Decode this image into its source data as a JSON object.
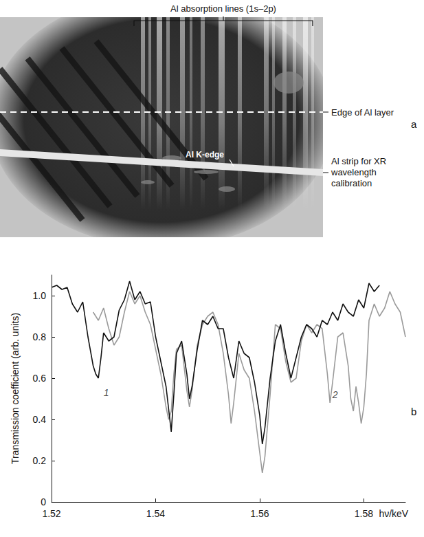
{
  "photo": {
    "letter": "a",
    "header": "Al absorption lines (1s–2p)",
    "edge_label": "Edge of Al layer",
    "kedge_label": "Al K-edge",
    "strip_label": "Al strip for XR wavelength calibration"
  },
  "chart_data": {
    "type": "line",
    "letter": "b",
    "x_label": "hν/keV",
    "y_label": "Transmission coefficient (arb. units)",
    "xlim": [
      1.52,
      1.588
    ],
    "xticks": [
      1.52,
      1.54,
      1.56,
      1.58
    ],
    "ylim": [
      0,
      1.1
    ],
    "yticks": [
      0,
      0.2,
      0.4,
      0.6,
      0.8,
      {
        "value": 1,
        "label": "1.0"
      }
    ],
    "grid": false,
    "series": [
      {
        "color": "#9a9a9a",
        "x": [
          1.528,
          1.529,
          1.53,
          1.531,
          1.532,
          1.533,
          1.534,
          1.535,
          1.536,
          1.537,
          1.538,
          1.539,
          1.54,
          1.541,
          1.542,
          1.5425,
          1.543,
          1.5435,
          1.544,
          1.545,
          1.546,
          1.5465,
          1.547,
          1.548,
          1.549,
          1.55,
          1.551,
          1.552,
          1.553,
          1.554,
          1.5545,
          1.555,
          1.556,
          1.557,
          1.558,
          1.559,
          1.56,
          1.5605,
          1.561,
          1.562,
          1.563,
          1.564,
          1.565,
          1.566,
          1.567,
          1.568,
          1.569,
          1.57,
          1.571,
          1.572,
          1.573,
          1.5735,
          1.574,
          1.575,
          1.576,
          1.577,
          1.5775,
          1.578,
          1.5785,
          1.579,
          1.5795,
          1.58,
          1.5805,
          1.581,
          1.582,
          1.583,
          1.584,
          1.585,
          1.586,
          1.587,
          1.588
        ],
        "values": [
          0.92,
          0.88,
          0.94,
          0.84,
          0.76,
          0.8,
          0.92,
          1.02,
          0.96,
          1.0,
          0.92,
          0.86,
          0.74,
          0.62,
          0.46,
          0.4,
          0.44,
          0.62,
          0.74,
          0.76,
          0.54,
          0.46,
          0.54,
          0.76,
          0.86,
          0.9,
          0.92,
          0.86,
          0.72,
          0.52,
          0.38,
          0.48,
          0.72,
          0.64,
          0.6,
          0.44,
          0.24,
          0.14,
          0.22,
          0.52,
          0.86,
          0.84,
          0.68,
          0.58,
          0.6,
          0.78,
          0.86,
          0.82,
          0.86,
          0.84,
          0.62,
          0.48,
          0.58,
          0.8,
          0.82,
          0.66,
          0.5,
          0.44,
          0.56,
          0.48,
          0.38,
          0.46,
          0.62,
          0.88,
          0.96,
          0.9,
          0.94,
          1.02,
          0.96,
          0.92,
          0.8
        ]
      },
      {
        "color": "#111111",
        "x": [
          1.52,
          1.521,
          1.522,
          1.523,
          1.524,
          1.525,
          1.526,
          1.527,
          1.528,
          1.5285,
          1.529,
          1.5295,
          1.53,
          1.531,
          1.532,
          1.533,
          1.534,
          1.535,
          1.536,
          1.537,
          1.538,
          1.539,
          1.54,
          1.541,
          1.542,
          1.5425,
          1.543,
          1.5435,
          1.544,
          1.545,
          1.546,
          1.5465,
          1.547,
          1.548,
          1.549,
          1.55,
          1.551,
          1.552,
          1.553,
          1.554,
          1.555,
          1.556,
          1.557,
          1.558,
          1.559,
          1.56,
          1.5605,
          1.561,
          1.562,
          1.563,
          1.564,
          1.565,
          1.566,
          1.567,
          1.568,
          1.569,
          1.57,
          1.571,
          1.572,
          1.573,
          1.574,
          1.575,
          1.576,
          1.577,
          1.578,
          1.579,
          1.58,
          1.581,
          1.582,
          1.583
        ],
        "values": [
          1.04,
          1.05,
          1.03,
          1.04,
          0.96,
          0.92,
          0.97,
          0.8,
          0.66,
          0.62,
          0.6,
          0.7,
          0.82,
          0.78,
          0.8,
          0.93,
          0.98,
          1.07,
          0.98,
          1.02,
          0.96,
          0.97,
          0.8,
          0.68,
          0.56,
          0.45,
          0.34,
          0.52,
          0.72,
          0.78,
          0.62,
          0.5,
          0.56,
          0.74,
          0.88,
          0.86,
          0.9,
          0.84,
          0.84,
          0.7,
          0.6,
          0.78,
          0.72,
          0.7,
          0.58,
          0.42,
          0.28,
          0.36,
          0.6,
          0.78,
          0.86,
          0.72,
          0.6,
          0.7,
          0.8,
          0.86,
          0.84,
          0.8,
          0.88,
          0.86,
          0.92,
          0.88,
          0.96,
          0.92,
          0.9,
          0.98,
          0.94,
          1.06,
          1.02,
          1.05
        ]
      }
    ],
    "annotations": [
      {
        "text": "1",
        "x": 1.5305,
        "y": 0.53
      },
      {
        "text": "2",
        "x": 1.5745,
        "y": 0.52
      }
    ]
  }
}
